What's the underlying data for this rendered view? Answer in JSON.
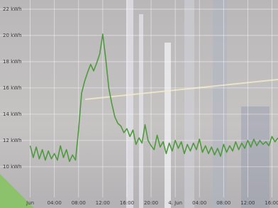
{
  "chart_data": {
    "type": "line",
    "x": [
      0,
      0.5,
      1,
      1.5,
      2,
      2.5,
      3,
      3.5,
      4,
      4.5,
      5,
      5.5,
      6,
      6.5,
      7,
      7.5,
      8,
      8.5,
      9,
      9.5,
      10,
      10.5,
      11,
      11.5,
      12,
      12.5,
      13,
      13.5,
      14,
      14.5,
      15,
      15.5,
      16,
      16.5,
      17,
      17.5,
      18,
      18.5,
      19,
      19.5,
      20,
      20.5,
      21,
      21.5,
      22,
      22.5,
      23,
      23.5,
      24,
      24.5,
      25,
      25.5,
      26,
      26.5,
      27,
      27.5,
      28,
      28.5,
      29,
      29.5,
      30,
      30.5,
      31,
      31.5,
      32,
      32.5,
      33,
      33.5,
      34,
      34.5,
      35,
      35.5,
      36,
      36.5,
      37,
      37.5,
      38,
      38.5,
      39,
      39.5,
      40,
      40.5,
      41
    ],
    "series": [
      {
        "color": "#4f9a3e",
        "values": [
          11.6,
          10.7,
          11.5,
          10.6,
          11.3,
          10.5,
          11.2,
          10.6,
          11.0,
          10.5,
          11.6,
          10.7,
          11.3,
          10.4,
          10.9,
          10.5,
          12.8,
          15.6,
          16.5,
          17.2,
          17.8,
          17.3,
          17.9,
          18.6,
          20.1,
          18.2,
          16.0,
          14.8,
          13.8,
          13.3,
          13.1,
          12.6,
          12.9,
          12.3,
          12.8,
          11.7,
          12.2,
          11.8,
          13.2,
          12.0,
          11.6,
          11.3,
          12.4,
          11.5,
          11.9,
          11.0,
          11.8,
          11.2,
          12.0,
          11.4,
          11.9,
          11.0,
          11.7,
          11.2,
          11.8,
          11.3,
          12.1,
          11.1,
          11.6,
          11.0,
          11.5,
          10.9,
          11.4,
          10.8,
          11.7,
          11.1,
          11.6,
          11.2,
          11.9,
          11.3,
          11.8,
          11.4,
          12.0,
          11.5,
          12.1,
          11.6,
          12.0,
          11.7,
          11.9,
          11.6,
          12.3,
          11.9,
          12.2
        ]
      }
    ],
    "xlim": [
      -5,
      41
    ],
    "xticks": [
      {
        "value": 0,
        "label": "Jun"
      },
      {
        "value": 4,
        "label": "04:00"
      },
      {
        "value": 8,
        "label": "08:00"
      },
      {
        "value": 12,
        "label": "12:00"
      },
      {
        "value": 16,
        "label": "16:00"
      },
      {
        "value": 20,
        "label": "20:00"
      },
      {
        "value": 24,
        "label": "4. Jun"
      },
      {
        "value": 28,
        "label": "04:00"
      },
      {
        "value": 32,
        "label": "08:00"
      },
      {
        "value": 36,
        "label": "12:00"
      },
      {
        "value": 40,
        "label": "16:00"
      }
    ],
    "ylim": [
      8.1,
      22.7
    ],
    "yticks": [
      {
        "value": 10,
        "label": "10 kWh"
      },
      {
        "value": 12,
        "label": "12 kWh"
      },
      {
        "value": 14,
        "label": "14 kWh"
      },
      {
        "value": 16,
        "label": "16 kWh"
      },
      {
        "value": 18,
        "label": "18 kWh"
      },
      {
        "value": 20,
        "label": "20 kWh"
      },
      {
        "value": 22,
        "label": "22 kWh"
      }
    ],
    "grid": true
  }
}
